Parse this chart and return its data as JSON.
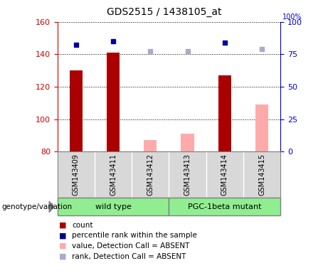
{
  "title": "GDS2515 / 1438105_at",
  "samples": [
    "GSM143409",
    "GSM143411",
    "GSM143412",
    "GSM143413",
    "GSM143414",
    "GSM143415"
  ],
  "count_values": [
    130,
    141,
    null,
    null,
    127,
    null
  ],
  "count_absent_values": [
    null,
    null,
    87,
    91,
    null,
    109
  ],
  "rank_values": [
    146,
    148,
    null,
    null,
    147,
    null
  ],
  "rank_absent_values": [
    null,
    null,
    142,
    142,
    null,
    143
  ],
  "ylim_left": [
    80,
    160
  ],
  "ylim_right": [
    0,
    100
  ],
  "yticks_left": [
    80,
    100,
    120,
    140,
    160
  ],
  "yticks_right": [
    0,
    25,
    50,
    75,
    100
  ],
  "count_color": "#AA0000",
  "count_absent_color": "#FFAAAA",
  "rank_color": "#000099",
  "rank_absent_color": "#AAAACC",
  "grid_color": "black",
  "sample_bg_color": "#D8D8D8",
  "plot_bg": "white",
  "left_axis_color": "#CC0000",
  "right_axis_color": "#0000CC",
  "group1_color": "#90EE90",
  "group2_color": "#90EE90",
  "genotype_label": "genotype/variation",
  "group1_name": "wild type",
  "group2_name": "PGC-1beta mutant",
  "legend_items": [
    {
      "color": "#AA0000",
      "label": "count"
    },
    {
      "color": "#000099",
      "label": "percentile rank within the sample"
    },
    {
      "color": "#FFAAAA",
      "label": "value, Detection Call = ABSENT"
    },
    {
      "color": "#AAAACC",
      "label": "rank, Detection Call = ABSENT"
    }
  ]
}
